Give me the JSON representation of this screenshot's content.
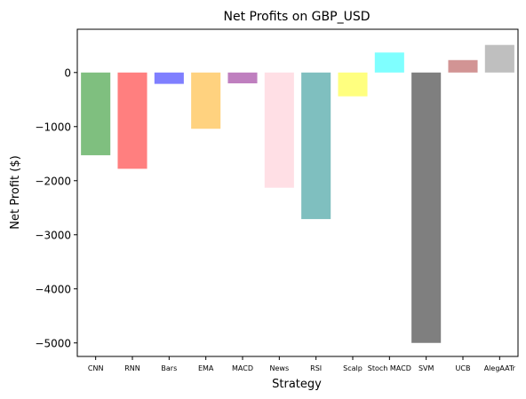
{
  "chart_data": {
    "type": "bar",
    "title": "Net Profits on GBP_USD",
    "xlabel": "Strategy",
    "ylabel": "Net Profit ($)",
    "categories": [
      "CNN",
      "RNN",
      "Bars",
      "EMA",
      "MACD",
      "News",
      "RSI",
      "Scalp",
      "Stoch MACD",
      "SVM",
      "UCB",
      "AlegAATr"
    ],
    "values": [
      -1530,
      -1780,
      -210,
      -1040,
      -200,
      -2130,
      -2710,
      -440,
      370,
      -5000,
      230,
      510
    ],
    "colors": [
      "#008000",
      "#ff0000",
      "#0000ff",
      "#ffa500",
      "#800080",
      "#ffc0cb",
      "#008080",
      "#ffff00",
      "#00ffff",
      "#000000",
      "#a52a2a",
      "#808080"
    ],
    "bar_opacity": 0.5,
    "ylim": [
      -5250,
      800
    ],
    "yticks": [
      -5000,
      -4000,
      -3000,
      -2000,
      -1000,
      0
    ],
    "ytick_labels": [
      "−5000",
      "−4000",
      "−3000",
      "−2000",
      "−1000",
      "0"
    ],
    "grid": false,
    "legend": "none"
  }
}
